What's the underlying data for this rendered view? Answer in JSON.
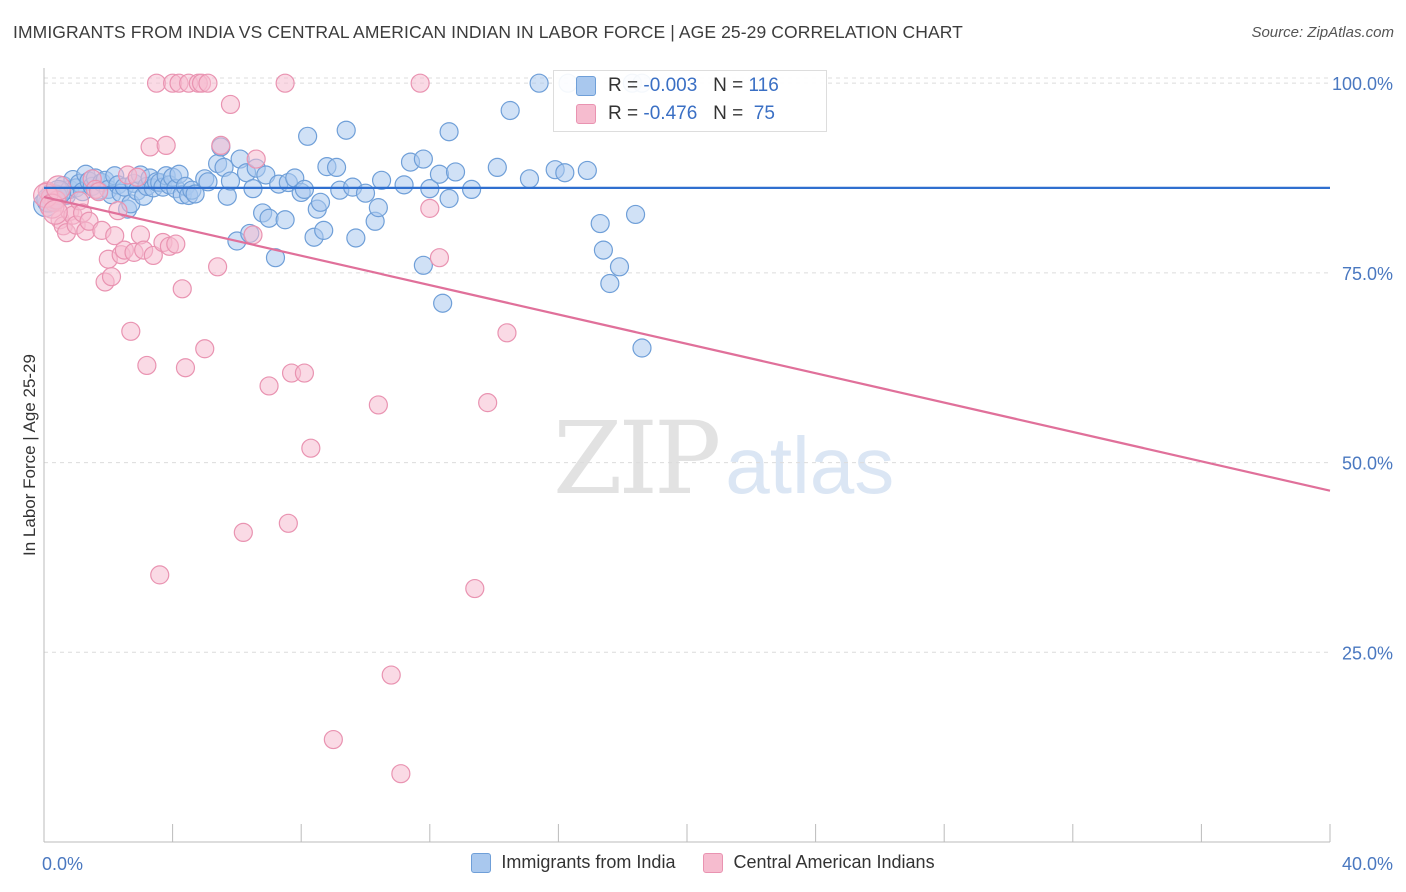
{
  "title": "IMMIGRANTS FROM INDIA VS CENTRAL AMERICAN INDIAN IN LABOR FORCE | AGE 25-29 CORRELATION CHART",
  "source": "Source: ZipAtlas.com",
  "watermark": {
    "zip": "ZIP",
    "atlas": "atlas"
  },
  "colors": {
    "blue_fill": "#a9c8ee",
    "blue_stroke": "#6f9fd8",
    "blue_line": "#2f6fcf",
    "pink_fill": "#f6bccf",
    "pink_stroke": "#e993b1",
    "pink_line": "#e0709a",
    "grid": "#dcdcdc",
    "tick_label": "#4a78c0"
  },
  "legend": {
    "rows": [
      {
        "r_label": "R =",
        "r_value": "-0.003",
        "n_label": "N =",
        "n_value": "116"
      },
      {
        "r_label": "R =",
        "r_value": "-0.476",
        "n_label": "N =",
        "n_value": "75"
      }
    ]
  },
  "chart_data": {
    "type": "scatter",
    "title": "IMMIGRANTS FROM INDIA VS CENTRAL AMERICAN INDIAN IN LABOR FORCE | AGE 25-29 CORRELATION CHART",
    "xlabel": "",
    "ylabel": "In Labor Force | Age 25-29",
    "xlim": [
      0,
      40
    ],
    "ylim": [
      0,
      102
    ],
    "x_tick_labels": [
      "0.0%",
      "40.0%"
    ],
    "y_ticks": [
      25,
      50,
      75,
      100
    ],
    "y_tick_labels": [
      "25.0%",
      "50.0%",
      "75.0%",
      "100.0%"
    ],
    "grid": true,
    "legend_position": "top-center",
    "series": [
      {
        "name": "Immigrants from India",
        "color": "#a9c8ee",
        "trend": {
          "x": [
            0,
            40
          ],
          "y": [
            86.2,
            86.2
          ]
        },
        "points": [
          [
            0.1,
            84.2
          ],
          [
            0.2,
            85.5
          ],
          [
            0.3,
            85.0
          ],
          [
            0.4,
            84.8
          ],
          [
            0.5,
            85.8
          ],
          [
            0.6,
            86.5
          ],
          [
            0.7,
            85.2
          ],
          [
            0.8,
            86.0
          ],
          [
            0.9,
            87.3
          ],
          [
            1.0,
            86.2
          ],
          [
            1.1,
            86.8
          ],
          [
            1.2,
            85.7
          ],
          [
            1.3,
            88.0
          ],
          [
            1.4,
            87.1
          ],
          [
            1.5,
            86.4
          ],
          [
            1.6,
            87.5
          ],
          [
            1.7,
            85.9
          ],
          [
            1.8,
            86.9
          ],
          [
            1.9,
            87.2
          ],
          [
            2.0,
            86.0
          ],
          [
            2.1,
            85.3
          ],
          [
            2.2,
            87.8
          ],
          [
            2.3,
            86.6
          ],
          [
            2.4,
            85.5
          ],
          [
            2.5,
            86.3
          ],
          [
            2.6,
            83.4
          ],
          [
            2.7,
            84.1
          ],
          [
            2.8,
            86.8
          ],
          [
            2.9,
            85.8
          ],
          [
            3.0,
            87.9
          ],
          [
            3.1,
            85.1
          ],
          [
            3.2,
            86.4
          ],
          [
            3.3,
            87.5
          ],
          [
            3.4,
            86.2
          ],
          [
            3.5,
            87.0
          ],
          [
            3.6,
            86.9
          ],
          [
            3.7,
            86.3
          ],
          [
            3.8,
            87.8
          ],
          [
            3.9,
            86.6
          ],
          [
            4.0,
            87.6
          ],
          [
            4.1,
            86.1
          ],
          [
            4.2,
            88.0
          ],
          [
            4.3,
            85.3
          ],
          [
            4.4,
            86.4
          ],
          [
            4.5,
            85.2
          ],
          [
            4.6,
            85.9
          ],
          [
            4.7,
            85.4
          ],
          [
            5.0,
            87.4
          ],
          [
            5.1,
            87.0
          ],
          [
            5.4,
            89.4
          ],
          [
            5.5,
            91.6
          ],
          [
            5.6,
            88.9
          ],
          [
            5.7,
            85.1
          ],
          [
            5.8,
            87.1
          ],
          [
            6.0,
            79.2
          ],
          [
            6.1,
            90.0
          ],
          [
            6.3,
            88.2
          ],
          [
            6.4,
            80.2
          ],
          [
            6.5,
            86.1
          ],
          [
            6.6,
            88.8
          ],
          [
            6.8,
            82.9
          ],
          [
            6.9,
            87.9
          ],
          [
            7.0,
            82.2
          ],
          [
            7.2,
            77.0
          ],
          [
            7.3,
            86.7
          ],
          [
            7.5,
            82.0
          ],
          [
            7.6,
            86.9
          ],
          [
            7.8,
            87.5
          ],
          [
            8.0,
            85.6
          ],
          [
            8.1,
            86.0
          ],
          [
            8.2,
            93.0
          ],
          [
            8.4,
            79.7
          ],
          [
            8.5,
            83.4
          ],
          [
            8.6,
            84.3
          ],
          [
            8.7,
            80.6
          ],
          [
            8.8,
            89.0
          ],
          [
            9.1,
            88.9
          ],
          [
            9.2,
            85.9
          ],
          [
            9.4,
            93.8
          ],
          [
            9.6,
            86.3
          ],
          [
            9.7,
            79.6
          ],
          [
            10.0,
            85.5
          ],
          [
            10.3,
            81.8
          ],
          [
            10.4,
            83.6
          ],
          [
            10.5,
            87.2
          ],
          [
            11.2,
            86.6
          ],
          [
            11.4,
            89.6
          ],
          [
            11.8,
            90.0
          ],
          [
            11.8,
            76.0
          ],
          [
            12.0,
            86.1
          ],
          [
            12.3,
            88.0
          ],
          [
            12.4,
            71.0
          ],
          [
            12.6,
            93.6
          ],
          [
            12.6,
            84.8
          ],
          [
            12.8,
            88.3
          ],
          [
            13.3,
            86.0
          ],
          [
            14.1,
            88.9
          ],
          [
            14.5,
            96.4
          ],
          [
            15.1,
            87.4
          ],
          [
            15.4,
            100.0
          ],
          [
            15.9,
            88.6
          ],
          [
            16.2,
            88.2
          ],
          [
            16.3,
            100.0
          ],
          [
            16.9,
            88.5
          ],
          [
            17.3,
            81.5
          ],
          [
            17.4,
            78.0
          ],
          [
            17.6,
            73.6
          ],
          [
            17.9,
            75.8
          ],
          [
            18.3,
            100.0
          ],
          [
            18.4,
            82.7
          ],
          [
            18.6,
            100.0
          ],
          [
            18.6,
            65.1
          ],
          [
            0.05,
            84.0
          ],
          [
            0.15,
            84.6
          ],
          [
            0.35,
            85.0
          ],
          [
            0.45,
            85.6
          ]
        ]
      },
      {
        "name": "Central American Indians",
        "color": "#f6bccf",
        "trend": {
          "x": [
            0,
            40
          ],
          "y": [
            85.0,
            46.3
          ]
        },
        "points": [
          [
            0.1,
            85.8
          ],
          [
            0.2,
            85.0
          ],
          [
            0.3,
            84.3
          ],
          [
            0.4,
            84.6
          ],
          [
            0.5,
            82.0
          ],
          [
            0.6,
            81.2
          ],
          [
            0.7,
            80.3
          ],
          [
            0.8,
            83.1
          ],
          [
            0.9,
            82.6
          ],
          [
            1.0,
            81.3
          ],
          [
            1.1,
            84.5
          ],
          [
            1.2,
            82.9
          ],
          [
            1.3,
            80.5
          ],
          [
            1.4,
            81.8
          ],
          [
            1.5,
            87.4
          ],
          [
            1.6,
            86.0
          ],
          [
            1.7,
            85.7
          ],
          [
            1.8,
            80.6
          ],
          [
            1.9,
            73.8
          ],
          [
            2.0,
            76.8
          ],
          [
            2.1,
            74.5
          ],
          [
            2.2,
            79.9
          ],
          [
            2.3,
            83.2
          ],
          [
            2.4,
            77.4
          ],
          [
            2.5,
            78.0
          ],
          [
            2.6,
            87.9
          ],
          [
            2.7,
            67.3
          ],
          [
            2.8,
            77.7
          ],
          [
            2.9,
            87.6
          ],
          [
            3.0,
            80.0
          ],
          [
            3.1,
            78.0
          ],
          [
            3.2,
            62.8
          ],
          [
            3.3,
            91.6
          ],
          [
            3.4,
            77.3
          ],
          [
            3.5,
            100.0
          ],
          [
            3.6,
            35.2
          ],
          [
            3.7,
            79.0
          ],
          [
            3.8,
            91.8
          ],
          [
            3.9,
            78.5
          ],
          [
            4.0,
            100.0
          ],
          [
            4.1,
            78.8
          ],
          [
            4.2,
            100.0
          ],
          [
            4.3,
            72.9
          ],
          [
            4.4,
            62.5
          ],
          [
            4.5,
            100.0
          ],
          [
            4.8,
            100.0
          ],
          [
            4.9,
            100.0
          ],
          [
            5.0,
            65.0
          ],
          [
            5.1,
            100.0
          ],
          [
            5.4,
            75.8
          ],
          [
            5.5,
            91.8
          ],
          [
            5.8,
            97.2
          ],
          [
            6.2,
            40.8
          ],
          [
            6.5,
            80.0
          ],
          [
            6.6,
            90.0
          ],
          [
            7.0,
            60.1
          ],
          [
            7.5,
            100.0
          ],
          [
            7.6,
            42.0
          ],
          [
            7.7,
            61.8
          ],
          [
            8.1,
            61.8
          ],
          [
            8.3,
            51.9
          ],
          [
            9.0,
            13.5
          ],
          [
            10.4,
            57.6
          ],
          [
            10.8,
            22.0
          ],
          [
            11.1,
            9.0
          ],
          [
            11.7,
            100.0
          ],
          [
            12.0,
            83.5
          ],
          [
            12.3,
            77.0
          ],
          [
            13.4,
            33.4
          ],
          [
            13.8,
            57.9
          ],
          [
            14.4,
            67.1
          ],
          [
            0.05,
            85.2
          ],
          [
            0.25,
            83.8
          ],
          [
            0.35,
            83.0
          ],
          [
            0.45,
            86.2
          ]
        ]
      }
    ]
  }
}
